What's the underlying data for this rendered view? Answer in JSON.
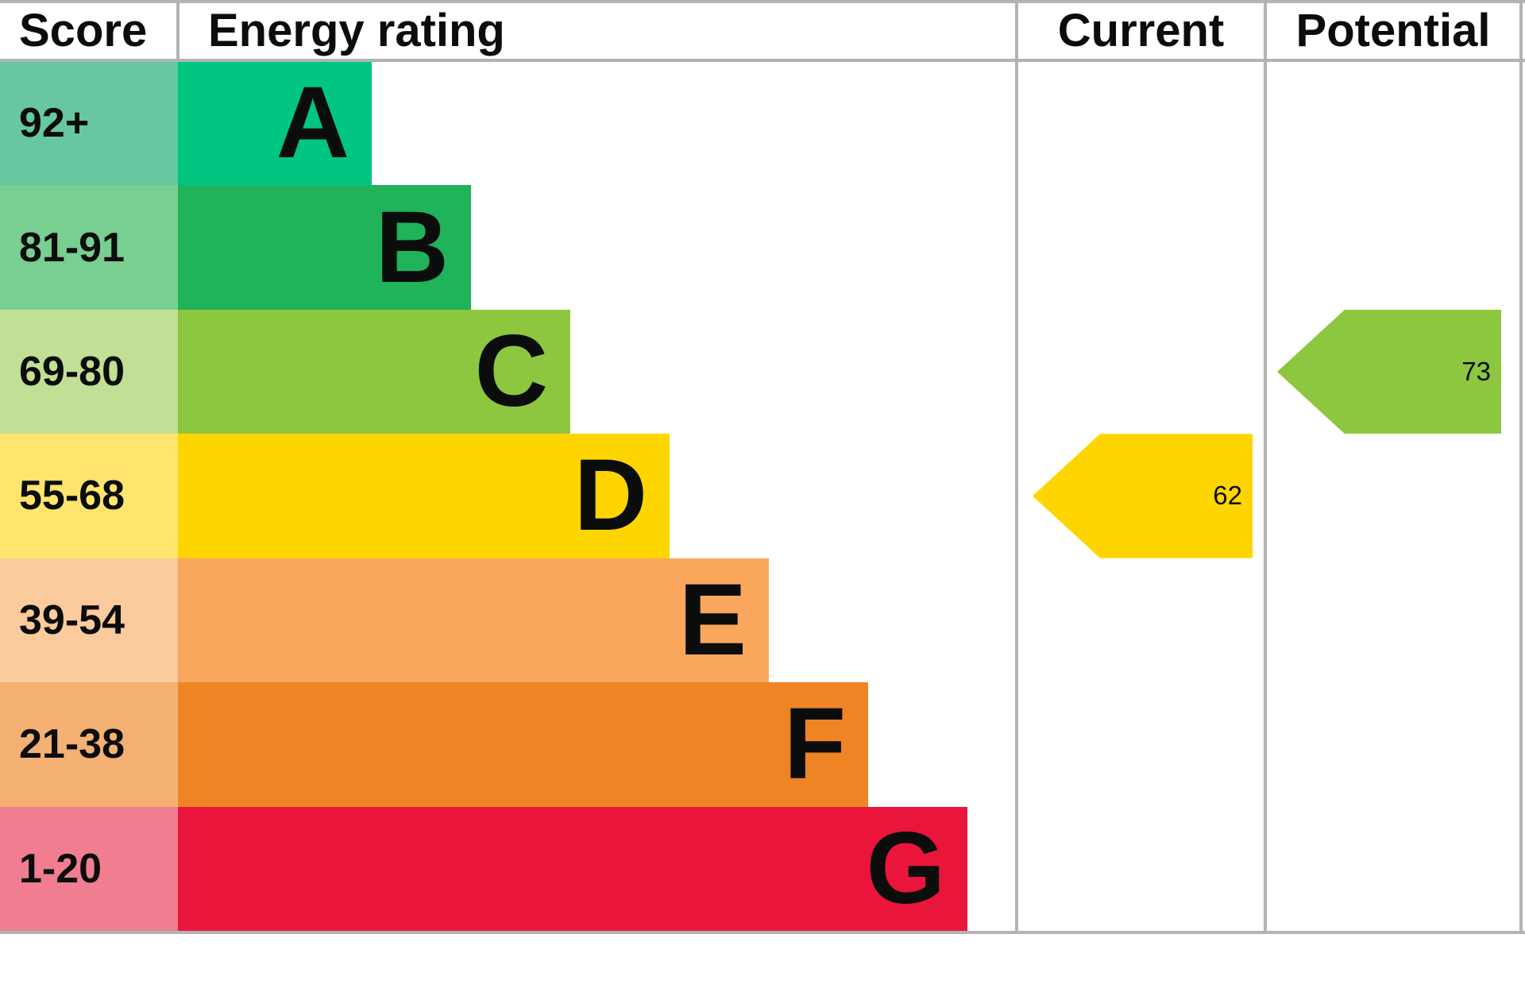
{
  "header": {
    "score": "Score",
    "energy_rating": "Energy rating",
    "current": "Current",
    "potential": "Potential"
  },
  "bands": [
    {
      "score_range": "92+",
      "letter": "A",
      "bar_color": "#00c681",
      "score_bg": "#66c7a0"
    },
    {
      "score_range": "81-91",
      "letter": "B",
      "bar_color": "#1fb35a",
      "score_bg": "#79ce92"
    },
    {
      "score_range": "69-80",
      "letter": "C",
      "bar_color": "#8dc63f",
      "score_bg": "#c1e095"
    },
    {
      "score_range": "55-68",
      "letter": "D",
      "bar_color": "#ffd500",
      "score_bg": "#ffe56e"
    },
    {
      "score_range": "39-54",
      "letter": "E",
      "bar_color": "#faa65d",
      "score_bg": "#fbca9d"
    },
    {
      "score_range": "21-38",
      "letter": "F",
      "bar_color": "#ee8424",
      "score_bg": "#f4b173"
    },
    {
      "score_range": "1-20",
      "letter": "G",
      "bar_color": "#e9153b",
      "score_bg": "#f17e90"
    }
  ],
  "current": {
    "value": "62",
    "band_letter": "D",
    "row_index": 3,
    "color": "#ffd500"
  },
  "potential": {
    "value": "73",
    "band_letter": "C",
    "row_index": 2,
    "color": "#8dc63f"
  },
  "border_color": "#b1b4b6",
  "chart_data": {
    "type": "bar",
    "title": "Energy rating (EPC)",
    "columns": [
      "Score",
      "Energy rating",
      "Current",
      "Potential"
    ],
    "categories": [
      "A",
      "B",
      "C",
      "D",
      "E",
      "F",
      "G"
    ],
    "score_ranges": [
      "92+",
      "81-91",
      "69-80",
      "55-68",
      "39-54",
      "21-38",
      "1-20"
    ],
    "band_colors": [
      "#00c681",
      "#1fb35a",
      "#8dc63f",
      "#ffd500",
      "#faa65d",
      "#ee8424",
      "#e9153b"
    ],
    "current": {
      "value": 62,
      "band": "D"
    },
    "potential": {
      "value": 73,
      "band": "C"
    },
    "legend_position": "none",
    "grid": false
  }
}
